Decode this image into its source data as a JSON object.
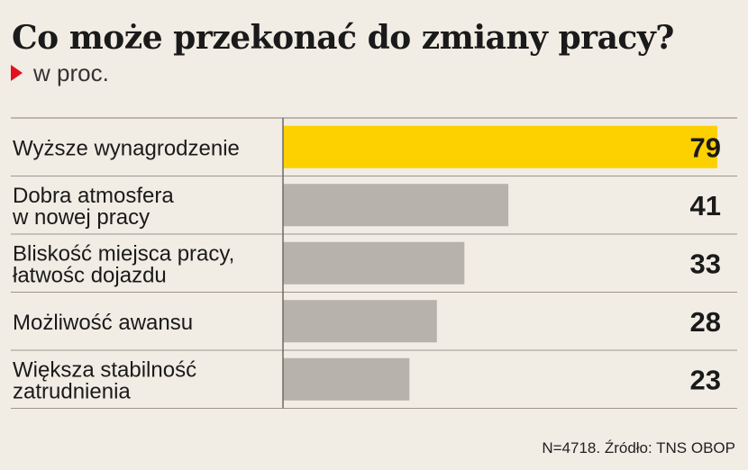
{
  "title": "Co może przekonać do zmiany pracy?",
  "unit_label": "w proc.",
  "source": "N=4718. Źródło: TNS OBOP",
  "colors": {
    "highlight": "#fdd000",
    "bar": "#b7b2ab",
    "marker": "#e2101f",
    "divider": "#9c968f"
  },
  "chart_data": {
    "type": "bar",
    "orientation": "horizontal",
    "categories": [
      [
        "Wyższe wynagrodzenie"
      ],
      [
        "Dobra atmosfera",
        "w nowej pracy"
      ],
      [
        "Bliskość miejsca pracy,",
        "łatwośc dojazdu"
      ],
      [
        "Możliwość awansu"
      ],
      [
        "Większa stabilność",
        "zatrudnienia"
      ]
    ],
    "values": [
      79,
      41,
      33,
      28,
      23
    ],
    "value_labels": [
      "79",
      "41",
      "33",
      "28",
      "23"
    ],
    "highlighted_index": 0,
    "xlim": [
      0,
      80
    ],
    "grid": false
  }
}
